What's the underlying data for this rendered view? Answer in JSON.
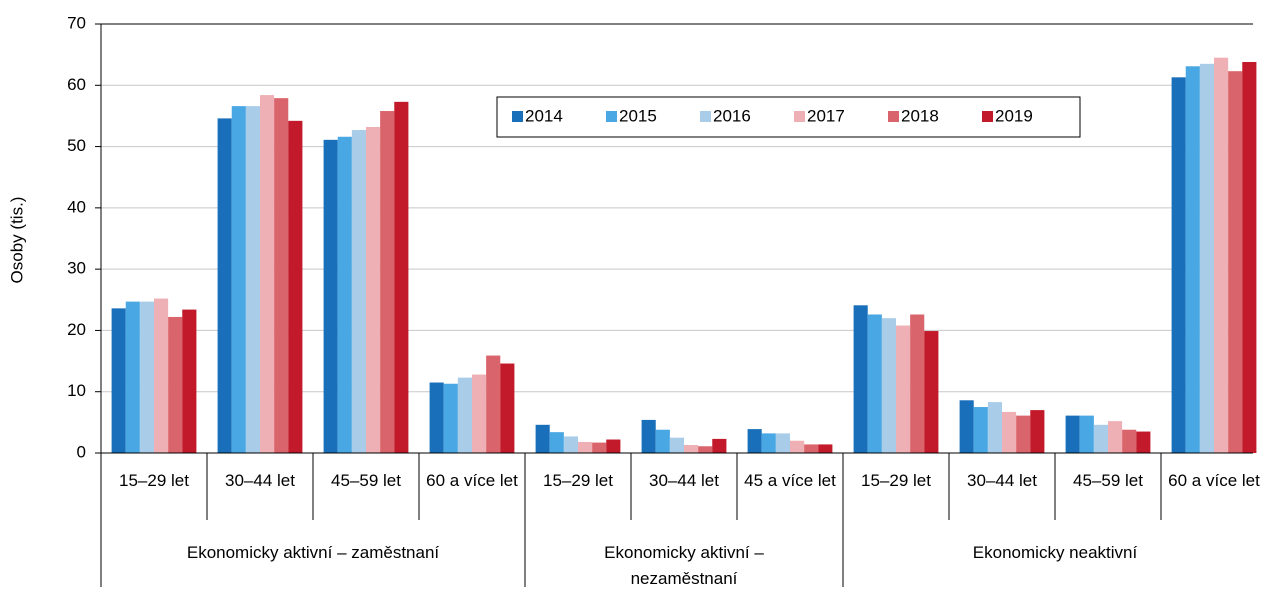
{
  "chart_data": {
    "type": "bar",
    "y_label": "Osoby (tis.)",
    "groups": [
      {
        "name": "Ekonomicky aktivní – zaměstnaní",
        "categories": [
          "15–29 let",
          "30–44 let",
          "45–59 let",
          "60 a více let"
        ]
      },
      {
        "name": "Ekonomicky aktivní – nezaměstnaní",
        "categories": [
          "15–29 let",
          "30–44 let",
          "45 a více let"
        ]
      },
      {
        "name": "Ekonomicky neaktivní",
        "categories": [
          "15–29 let",
          "30–44 let",
          "45–59 let",
          "60 a více let"
        ]
      }
    ],
    "series": [
      {
        "name": "2014",
        "color": "#1a6fba",
        "values": [
          23.6,
          54.6,
          51.1,
          11.5,
          4.6,
          5.4,
          3.9,
          24.1,
          8.6,
          6.1,
          61.3
        ]
      },
      {
        "name": "2015",
        "color": "#49a7e3",
        "values": [
          24.7,
          56.6,
          51.6,
          11.3,
          3.4,
          3.8,
          3.2,
          22.6,
          7.5,
          6.1,
          63.1
        ]
      },
      {
        "name": "2016",
        "color": "#a9cce9",
        "values": [
          24.7,
          56.6,
          52.7,
          12.3,
          2.7,
          2.5,
          3.2,
          22.0,
          8.3,
          4.6,
          63.5
        ]
      },
      {
        "name": "2017",
        "color": "#eeb0b4",
        "values": [
          25.2,
          58.4,
          53.2,
          12.8,
          1.8,
          1.3,
          2.0,
          20.8,
          6.7,
          5.2,
          64.5
        ]
      },
      {
        "name": "2018",
        "color": "#d9646b",
        "values": [
          22.2,
          57.9,
          55.8,
          15.9,
          1.7,
          1.1,
          1.4,
          22.6,
          6.1,
          3.8,
          62.3
        ]
      },
      {
        "name": "2019",
        "color": "#c21a2a",
        "values": [
          23.4,
          54.2,
          57.3,
          14.6,
          2.2,
          2.3,
          1.4,
          19.9,
          7.0,
          3.5,
          63.8
        ]
      }
    ],
    "ylim": [
      0,
      70
    ],
    "yticks": [
      0,
      10,
      20,
      30,
      40,
      50,
      60,
      70
    ],
    "grid": true
  }
}
